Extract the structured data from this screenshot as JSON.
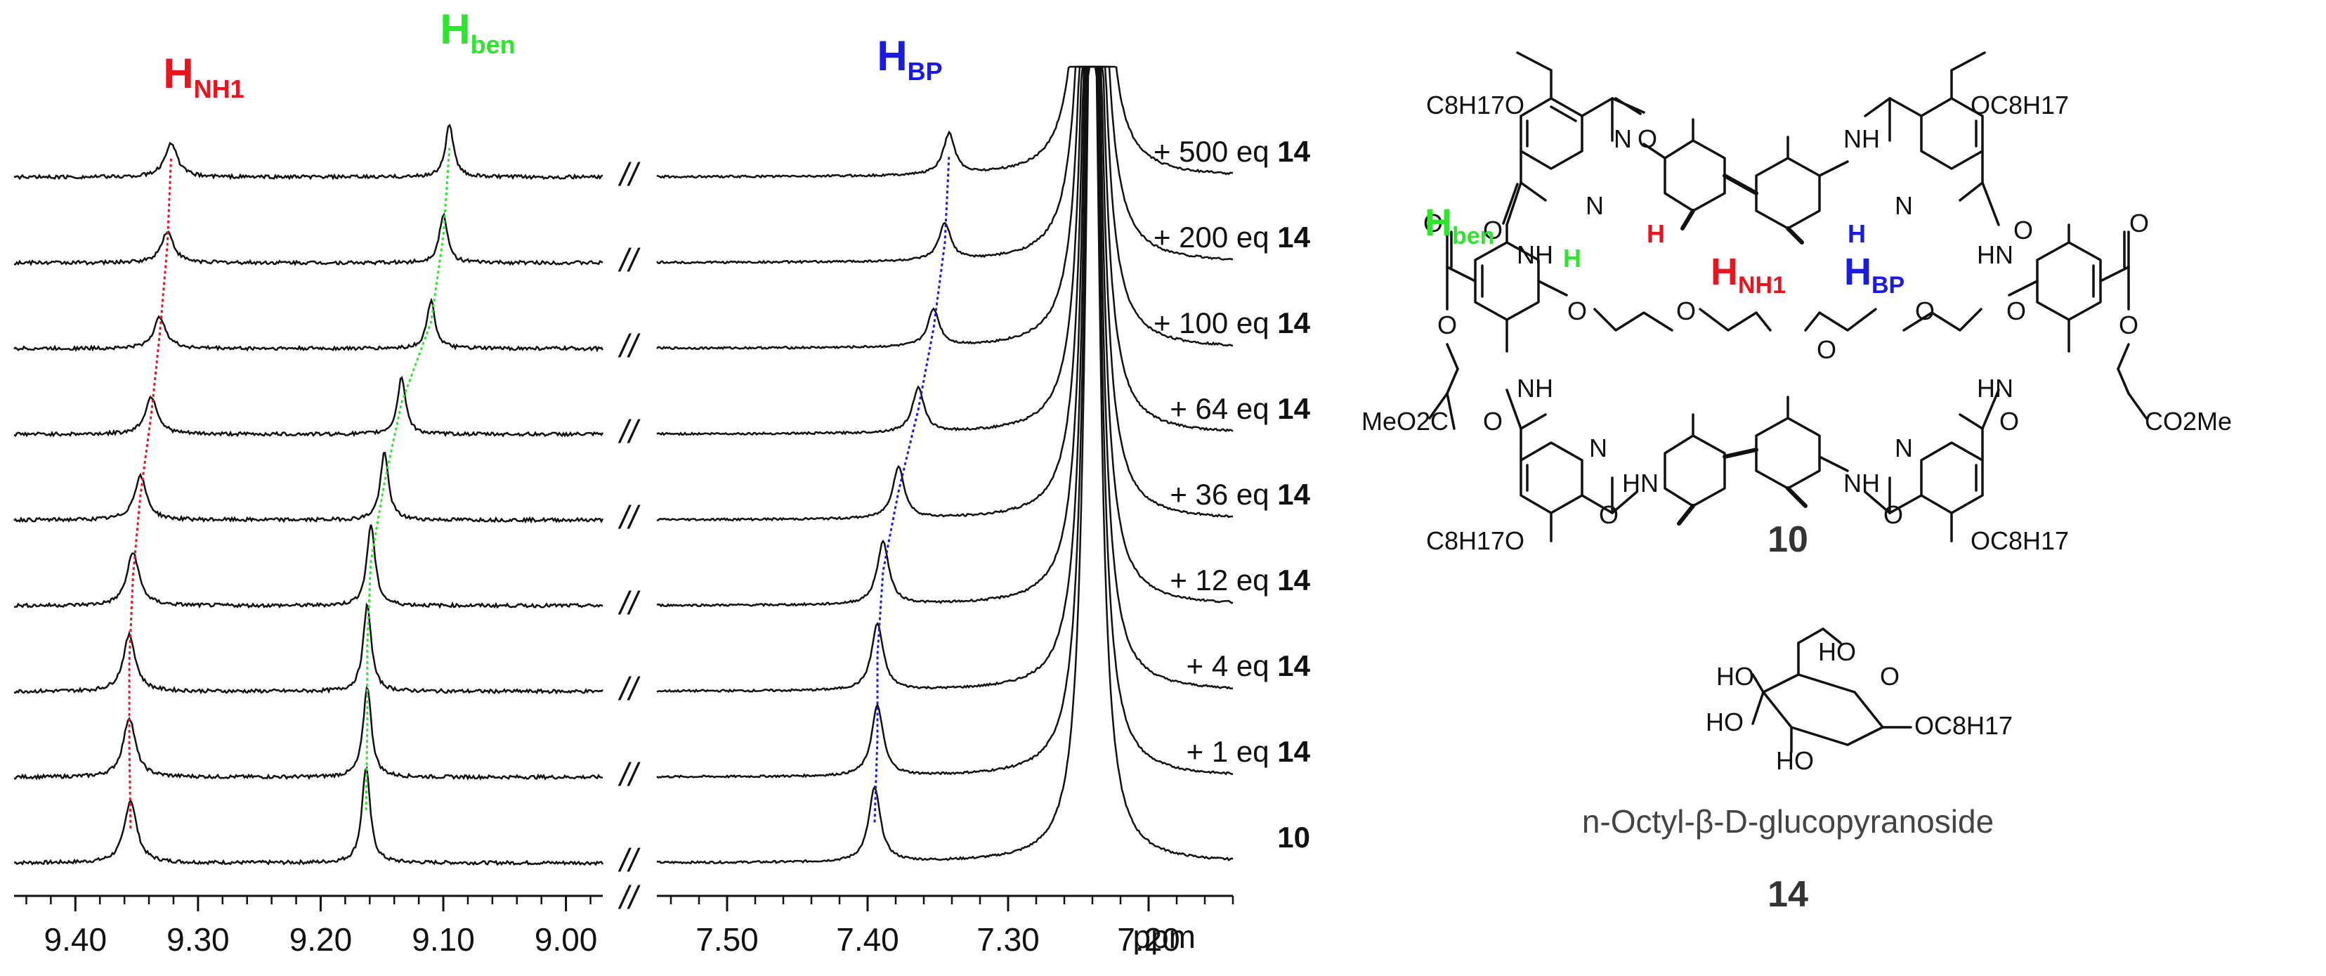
{
  "chart_data": {
    "type": "line",
    "title": "",
    "xlabel": "ppm",
    "x_unit": "ppm",
    "x_axis_reversed": true,
    "axis_break": "//",
    "x_segments": [
      {
        "name": "left",
        "range": [
          9.45,
          8.97
        ],
        "ticks": [
          "9.40",
          "9.30",
          "9.20",
          "9.10",
          "9.00"
        ],
        "tick_values": [
          9.4,
          9.3,
          9.2,
          9.1,
          9.0
        ]
      },
      {
        "name": "right",
        "range": [
          7.55,
          7.14
        ],
        "ticks": [
          "7.50",
          "7.40",
          "7.30",
          "7.20"
        ],
        "tick_values": [
          7.5,
          7.4,
          7.3,
          7.2
        ]
      }
    ],
    "solvent_peak_ppm": 7.24,
    "series": [
      {
        "name": "10",
        "label_prefix": "",
        "label_bold": "10",
        "H_NH1": 9.355,
        "H_ben": 9.163,
        "H_BP": 7.395,
        "relative_height": 1.0
      },
      {
        "name": "+ 1 eq 14",
        "label_prefix": "+ 1 eq ",
        "label_bold": "14",
        "H_NH1": 9.356,
        "H_ben": 9.162,
        "H_BP": 7.393,
        "relative_height": 0.95
      },
      {
        "name": "+ 4 eq 14",
        "label_prefix": "+ 4 eq ",
        "label_bold": "14",
        "H_NH1": 9.356,
        "H_ben": 9.162,
        "H_BP": 7.393,
        "relative_height": 0.9
      },
      {
        "name": "+ 12 eq 14",
        "label_prefix": "+ 12 eq ",
        "label_bold": "14",
        "H_NH1": 9.353,
        "H_ben": 9.159,
        "H_BP": 7.389,
        "relative_height": 0.85
      },
      {
        "name": "+ 36 eq 14",
        "label_prefix": "+ 36 eq ",
        "label_bold": "14",
        "H_NH1": 9.347,
        "H_ben": 9.148,
        "H_BP": 7.378,
        "relative_height": 0.7
      },
      {
        "name": "+ 64 eq 14",
        "label_prefix": "+ 64 eq ",
        "label_bold": "14",
        "H_NH1": 9.338,
        "H_ben": 9.134,
        "H_BP": 7.364,
        "relative_height": 0.6
      },
      {
        "name": "+ 100 eq 14",
        "label_prefix": "+ 100 eq ",
        "label_bold": "14",
        "H_NH1": 9.331,
        "H_ben": 9.11,
        "H_BP": 7.353,
        "relative_height": 0.5
      },
      {
        "name": "+ 200 eq 14",
        "label_prefix": "+ 200 eq ",
        "label_bold": "14",
        "H_NH1": 9.325,
        "H_ben": 9.1,
        "H_BP": 7.345,
        "relative_height": 0.5
      },
      {
        "name": "+ 500 eq 14",
        "label_prefix": "+ 500 eq ",
        "label_bold": "14",
        "H_NH1": 9.322,
        "H_ben": 9.095,
        "H_BP": 7.342,
        "relative_height": 0.55
      }
    ],
    "peak_labels": [
      {
        "key": "H_NH1",
        "main": "H",
        "sub": "NH1",
        "color": "#e8141e"
      },
      {
        "key": "H_ben",
        "main": "H",
        "sub": "ben",
        "color": "#2ee62e"
      },
      {
        "key": "H_BP",
        "main": "H",
        "sub": "BP",
        "color": "#1a1ae6"
      }
    ]
  },
  "structures": {
    "macrocycle": {
      "number": "10",
      "labels": {
        "c8h17o": "C8H17O",
        "oc8h17": "OC8H17",
        "nh": "NH",
        "hn": "HN",
        "n": "N",
        "o": "O",
        "h": "H",
        "meo2c": "MeO2C",
        "co2me": "CO2Me"
      },
      "proton_labels": [
        {
          "main": "H",
          "sub": "ben",
          "color": "#2ee62e"
        },
        {
          "main": "H",
          "sub": "NH1",
          "color": "#e8141e"
        },
        {
          "main": "H",
          "sub": "BP",
          "color": "#1a1ae6"
        }
      ]
    },
    "guest": {
      "number": "14",
      "name": "n-Octyl-β-D-glucopyranoside",
      "labels": {
        "ho": "HO",
        "oc8h17": "OC8H17",
        "o": "O"
      }
    }
  }
}
